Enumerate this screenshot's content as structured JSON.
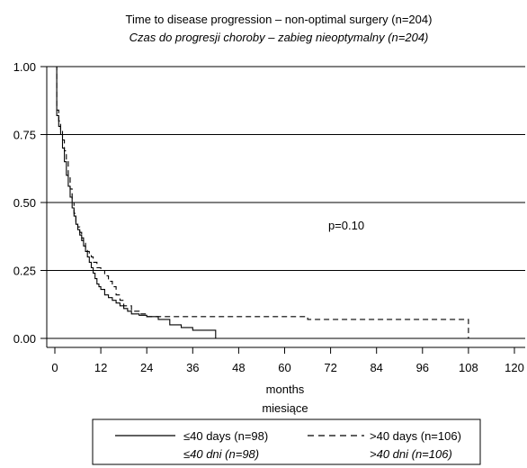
{
  "chart_data": {
    "type": "line",
    "subtype": "kaplan-meier step",
    "title": "Time to disease progression – non-optimal surgery (n=204)",
    "subtitle": "Czas do progresji choroby – zabieg nieoptymalny (n=204)",
    "xlabel": "months",
    "xlabel_secondary": "miesiące",
    "ylabel": "",
    "xlim": [
      0,
      120
    ],
    "ylim": [
      0,
      1
    ],
    "xticks": [
      "0",
      "12",
      "24",
      "36",
      "48",
      "60",
      "72",
      "84",
      "96",
      "108",
      "120"
    ],
    "yticks": [
      "0.00",
      "0.25",
      "0.50",
      "0.75",
      "1.00"
    ],
    "grid": "horizontal",
    "legend_position": "bottom",
    "annotation": "p=0.10",
    "series": [
      {
        "name": "≤40 days (n=98)",
        "name_secondary": "≤40 dni (n=98)",
        "line_style": "solid",
        "x": [
          0,
          0.5,
          1,
          1.5,
          2,
          2.5,
          3,
          3.5,
          4,
          4.5,
          5,
          5.5,
          6,
          6.5,
          7,
          7.5,
          8,
          8.5,
          9,
          9.5,
          10,
          10.5,
          11,
          11.5,
          12,
          13,
          14,
          15,
          16,
          17,
          18,
          19,
          20,
          22,
          24,
          27,
          30,
          33,
          36,
          42
        ],
        "y": [
          1.0,
          0.82,
          0.78,
          0.75,
          0.7,
          0.65,
          0.6,
          0.56,
          0.52,
          0.48,
          0.45,
          0.42,
          0.4,
          0.38,
          0.36,
          0.34,
          0.32,
          0.3,
          0.28,
          0.26,
          0.24,
          0.22,
          0.2,
          0.19,
          0.18,
          0.16,
          0.15,
          0.14,
          0.13,
          0.12,
          0.11,
          0.1,
          0.09,
          0.085,
          0.08,
          0.07,
          0.05,
          0.04,
          0.03,
          0.0
        ]
      },
      {
        "name": ">40 days (n=106)",
        "name_secondary": ">40 dni (n=106)",
        "line_style": "dashed",
        "x": [
          0,
          0.5,
          1,
          1.5,
          2,
          2.5,
          3,
          3.5,
          4,
          4.5,
          5,
          5.5,
          6,
          6.5,
          7,
          7.5,
          8,
          8.5,
          9,
          9.5,
          10,
          11,
          12,
          13,
          14,
          15,
          16,
          17,
          18,
          20,
          22,
          24,
          66,
          108
        ],
        "y": [
          1.0,
          0.84,
          0.8,
          0.77,
          0.73,
          0.69,
          0.65,
          0.6,
          0.55,
          0.5,
          0.46,
          0.43,
          0.41,
          0.39,
          0.37,
          0.35,
          0.33,
          0.32,
          0.31,
          0.3,
          0.28,
          0.26,
          0.25,
          0.23,
          0.21,
          0.19,
          0.16,
          0.14,
          0.12,
          0.1,
          0.09,
          0.08,
          0.07,
          0.0
        ]
      }
    ]
  }
}
